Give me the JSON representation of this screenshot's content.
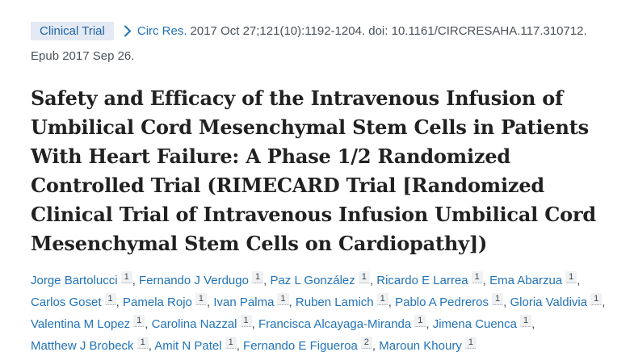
{
  "colors": {
    "link_blue": "#2173b9",
    "badge_bg": "#e4eaf3",
    "badge_text": "#1e63a9",
    "title_text": "#212121",
    "body_gray": "#4b5157",
    "chip_bg": "#eff1f3",
    "chip_text": "#41474d"
  },
  "header": {
    "badge_label": "Clinical Trial",
    "chevron_icon": "chevron-right-icon",
    "journal_link": "Circ Res.",
    "citation_text": "2017 Oct 27;121(10):1192-1204. doi: 10.1161/CIRCRESAHA.117.310712.",
    "epub_text": "Epub 2017 Sep 26."
  },
  "title_lines": [
    "Safety and Efficacy of the Intravenous Infusion of",
    "Umbilical Cord Mesenchymal Stem Cells in Patients",
    "With Heart Failure: A Phase 1/2 Randomized",
    "Controlled Trial (RIMECARD Trial [Randomized",
    "Clinical Trial of Intravenous Infusion Umbilical Cord",
    "Mesenchymal Stem Cells on Cardiopathy])"
  ],
  "authors": {
    "separator": ",",
    "lines": [
      [
        {
          "name": "Jorge Bartolucci",
          "affiliation": "1"
        },
        {
          "name": "Fernando J Verdugo",
          "affiliation": "1"
        },
        {
          "name": "Paz L González",
          "affiliation": "1"
        },
        {
          "name": "Ricardo E Larrea",
          "affiliation": "1"
        },
        {
          "name": "Ema Abarzua",
          "affiliation": "1"
        }
      ],
      [
        {
          "name": "Carlos Goset",
          "affiliation": "1"
        },
        {
          "name": "Pamela Rojo",
          "affiliation": "1"
        },
        {
          "name": "Ivan Palma",
          "affiliation": "1"
        },
        {
          "name": "Ruben Lamich",
          "affiliation": "1"
        },
        {
          "name": "Pablo A Pedreros",
          "affiliation": "1"
        },
        {
          "name": "Gloria Valdivia",
          "affiliation": "1"
        }
      ],
      [
        {
          "name": "Valentina M Lopez",
          "affiliation": "1"
        },
        {
          "name": "Carolina Nazzal",
          "affiliation": "1"
        },
        {
          "name": "Francisca Alcayaga-Miranda",
          "affiliation": "1"
        },
        {
          "name": "Jimena Cuenca",
          "affiliation": "1"
        }
      ],
      [
        {
          "name": "Matthew J Brobeck",
          "affiliation": "1"
        },
        {
          "name": "Amit N Patel",
          "affiliation": "1"
        },
        {
          "name": "Fernando E Figueroa",
          "affiliation": "2"
        },
        {
          "name": "Maroun Khoury",
          "affiliation": "1"
        }
      ]
    ]
  }
}
